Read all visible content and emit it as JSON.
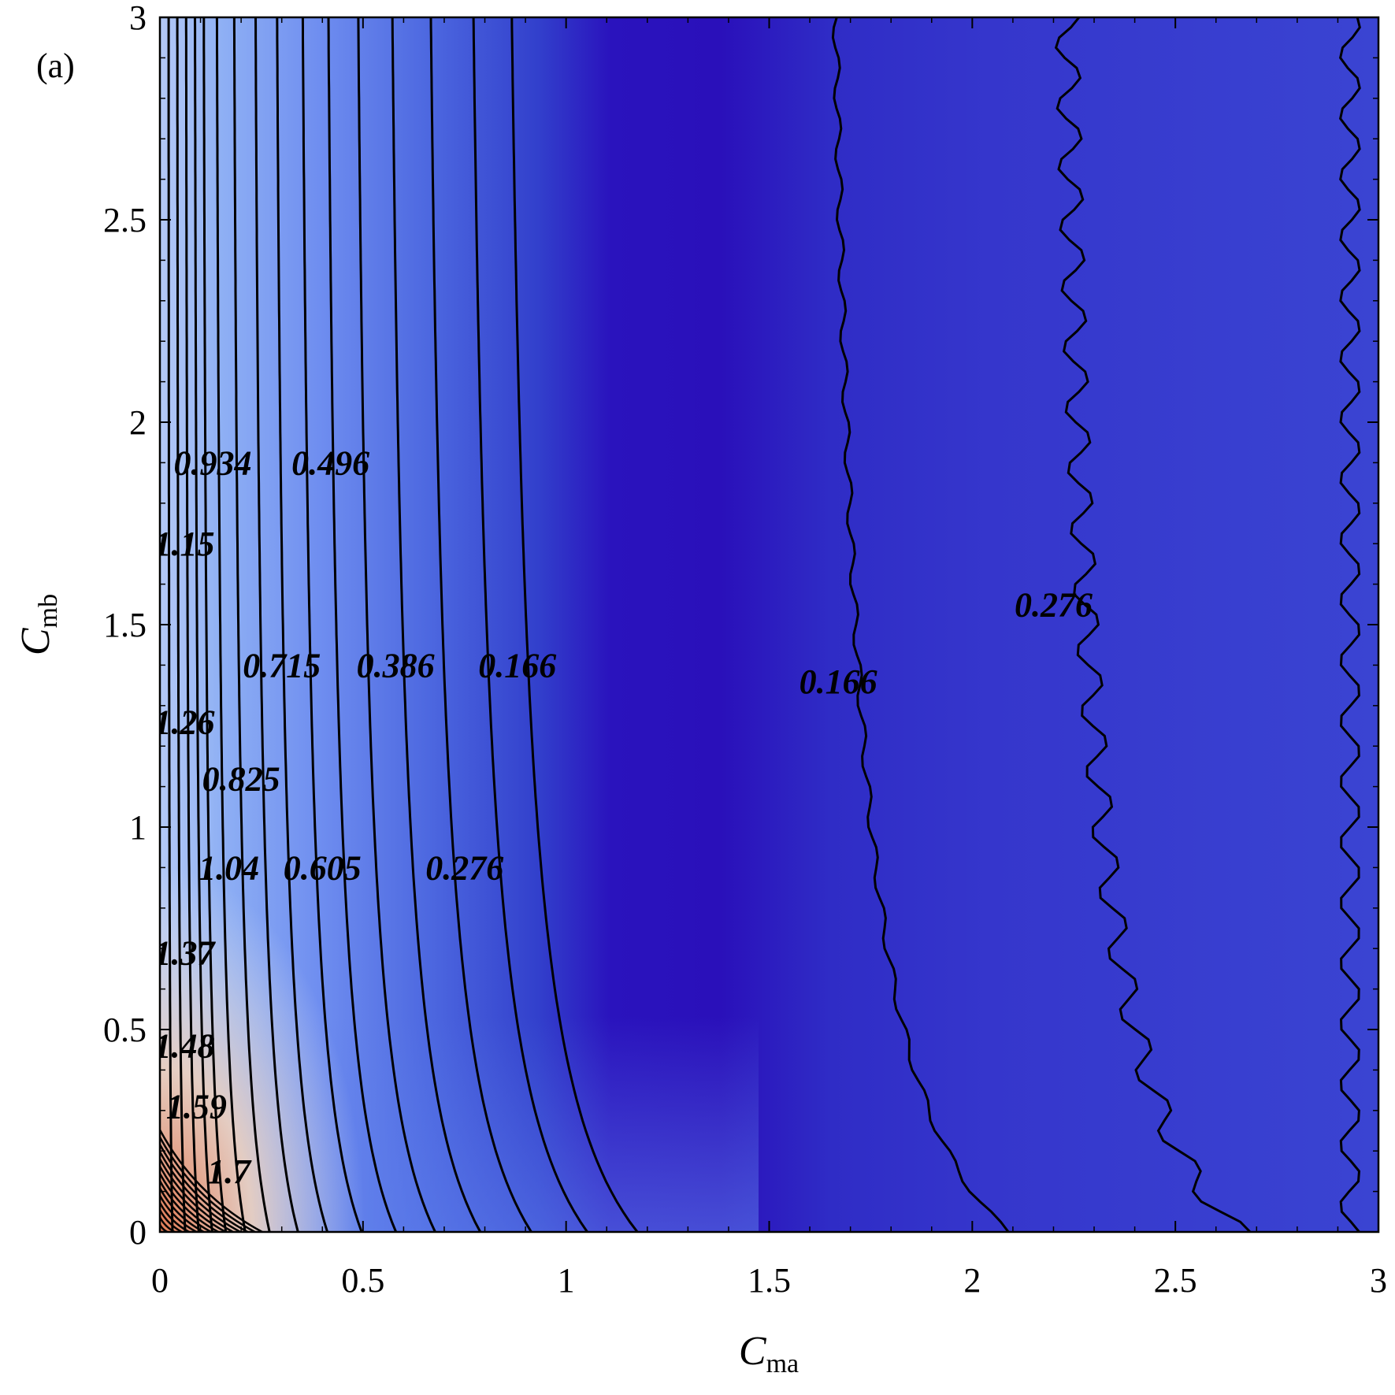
{
  "panel_label": "(a)",
  "chart_data": {
    "type": "heatmap",
    "subtype": "filled contour with labeled contour lines",
    "xlabel": {
      "base": "C",
      "sub": "ma"
    },
    "ylabel": {
      "base": "C",
      "sub": "mb"
    },
    "xlim": [
      0,
      3
    ],
    "ylim": [
      0,
      3
    ],
    "xticks": [
      0,
      0.5,
      1,
      1.5,
      2,
      2.5,
      3
    ],
    "yticks": [
      0,
      0.5,
      1,
      1.5,
      2,
      2.5,
      3
    ],
    "xtick_labels": [
      "0",
      "0.5",
      "1",
      "1.5",
      "2",
      "2.5",
      "3"
    ],
    "ytick_labels": [
      "0",
      "0.5",
      "1",
      "1.5",
      "2",
      "2.5",
      "3"
    ],
    "colormap": "coolwarm",
    "colors": {
      "low": "#2a0fb8",
      "mid": "#3d4fd9",
      "light": "#9ab8f4",
      "neutral": "#e2ddd6",
      "high": "#e27b55"
    },
    "value_range": [
      0.11,
      1.8
    ],
    "contour_levels": [
      1.7,
      1.59,
      1.48,
      1.37,
      1.26,
      1.15,
      1.04,
      0.934,
      0.825,
      0.715,
      0.605,
      0.496,
      0.386,
      0.276,
      0.166
    ],
    "contour_labels": [
      {
        "text": "0.934",
        "x": 0.13,
        "y": 1.9
      },
      {
        "text": "0.496",
        "x": 0.42,
        "y": 1.9
      },
      {
        "text": "1.15",
        "x": 0.06,
        "y": 1.7
      },
      {
        "text": "0.715",
        "x": 0.3,
        "y": 1.4
      },
      {
        "text": "0.386",
        "x": 0.58,
        "y": 1.4
      },
      {
        "text": "0.166",
        "x": 0.88,
        "y": 1.4
      },
      {
        "text": "0.276",
        "x": 2.2,
        "y": 1.55
      },
      {
        "text": "0.166",
        "x": 1.67,
        "y": 1.36
      },
      {
        "text": "1.26",
        "x": 0.06,
        "y": 1.26
      },
      {
        "text": "0.825",
        "x": 0.2,
        "y": 1.12
      },
      {
        "text": "1.04",
        "x": 0.17,
        "y": 0.9
      },
      {
        "text": "0.605",
        "x": 0.4,
        "y": 0.9
      },
      {
        "text": "0.276",
        "x": 0.75,
        "y": 0.9
      },
      {
        "text": "1.37",
        "x": 0.06,
        "y": 0.69
      },
      {
        "text": "1.48",
        "x": 0.06,
        "y": 0.46
      },
      {
        "text": "1.59",
        "x": 0.09,
        "y": 0.31
      },
      {
        "text": "1.7",
        "x": 0.17,
        "y": 0.15
      }
    ]
  }
}
